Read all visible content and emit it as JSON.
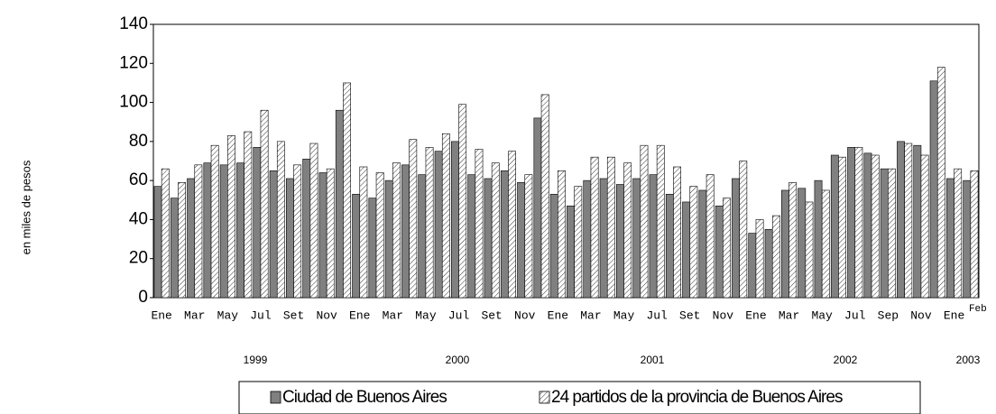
{
  "chart_data": {
    "type": "bar",
    "y_label": "en miles de pesos",
    "categories": [
      "Ene",
      null,
      "Mar",
      null,
      "May",
      null,
      "Jul",
      null,
      "Set",
      null,
      "Nov",
      null,
      "Ene",
      null,
      "Mar",
      null,
      "May",
      null,
      "Jul",
      null,
      "Set",
      null,
      "Nov",
      null,
      "Ene",
      null,
      "Mar",
      null,
      "May",
      null,
      "Jul",
      null,
      "Set",
      null,
      "Nov",
      null,
      "Ene",
      null,
      "Mar",
      null,
      "May",
      null,
      "Jul",
      null,
      "Sep",
      null,
      "Nov",
      null,
      "Ene",
      "Feb"
    ],
    "years": [
      "1999",
      "2000",
      "2001",
      "2002",
      "2003"
    ],
    "series": [
      {
        "name": "Ciudad de Buenos Aires",
        "color": "#808080",
        "values": [
          57,
          51,
          61,
          69,
          68,
          69,
          77,
          65,
          61,
          71,
          64,
          96,
          53,
          51,
          60,
          68,
          63,
          75,
          80,
          63,
          61,
          65,
          59,
          92,
          53,
          47,
          60,
          61,
          58,
          61,
          63,
          53,
          49,
          55,
          47,
          61,
          33,
          35,
          55,
          56,
          60,
          73,
          77,
          74,
          66,
          80,
          78,
          111,
          61,
          60
        ]
      },
      {
        "name": "24 partidos de la provincia de Buenos Aires",
        "color": "#ffffff",
        "values": [
          66,
          59,
          68,
          78,
          83,
          85,
          96,
          80,
          68,
          79,
          66,
          110,
          67,
          64,
          69,
          81,
          77,
          84,
          99,
          76,
          69,
          75,
          63,
          104,
          65,
          57,
          72,
          72,
          69,
          78,
          78,
          67,
          57,
          63,
          51,
          70,
          40,
          42,
          59,
          49,
          55,
          72,
          77,
          73,
          66,
          79,
          73,
          118,
          66,
          65
        ]
      }
    ],
    "ylim": [
      0,
      140
    ],
    "yticks": [
      0,
      20,
      40,
      60,
      80,
      100,
      120,
      140
    ],
    "grid": false
  }
}
